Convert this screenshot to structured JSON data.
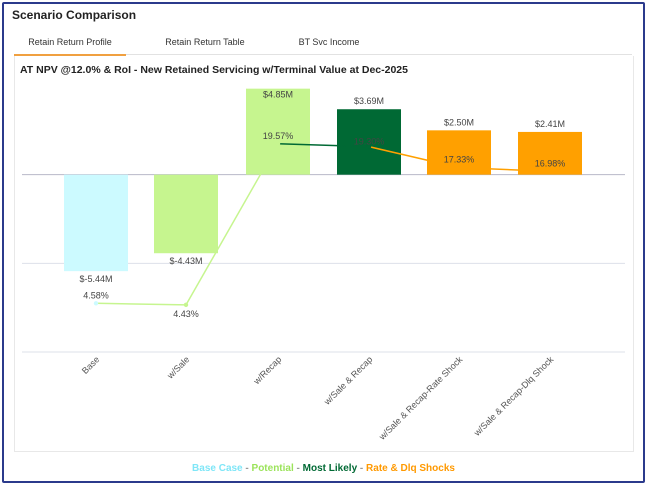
{
  "panel": {
    "title": "Scenario Comparison",
    "tabs": [
      {
        "label": "Retain Return Profile",
        "active": true
      },
      {
        "label": "Retain Return Table",
        "active": false
      },
      {
        "label": "BT Svc Income",
        "active": false
      }
    ]
  },
  "chart_data": {
    "type": "bar",
    "title": "AT NPV @12.0% & RoI - New Retained Servicing w/Terminal Value at Dec-2025",
    "categories": [
      "Base",
      "w/Sale",
      "w/Recap",
      "w/Sale & Recap",
      "w/Sale & Recap-Rate Shock",
      "w/Sale & Recap-Dlq Shock"
    ],
    "series": [
      {
        "name": "AT NPV ($M)",
        "type": "bar",
        "values": [
          -5.44,
          -4.43,
          4.85,
          3.69,
          2.5,
          2.41
        ],
        "labels": [
          "$-5.44M",
          "$-4.43M",
          "$4.85M",
          "$3.69M",
          "$2.50M",
          "$2.41M"
        ],
        "colors": [
          "#ccfaff",
          "#c6f58f",
          "#c6f58f",
          "#006934",
          "#ffa000",
          "#ffa000"
        ]
      },
      {
        "name": "RoI (%)",
        "type": "line",
        "values": [
          4.58,
          4.43,
          19.57,
          19.3,
          17.33,
          16.98
        ],
        "labels": [
          "4.58%",
          "4.43%",
          "19.57%",
          "19.30%",
          "17.33%",
          "16.98%"
        ],
        "colors": [
          "#ccfaff",
          "#c6f58f",
          "#c6f58f",
          "#006934",
          "#ffa000",
          "#ffa000"
        ]
      }
    ],
    "ylim_npv": [
      -10,
      5
    ],
    "ylim_roi": [
      0,
      25
    ],
    "legend": [
      {
        "label": "Base Case",
        "color": "#7fe6f7"
      },
      {
        "label": "Potential",
        "color": "#9be35a"
      },
      {
        "label": "Most Likely",
        "color": "#006934"
      },
      {
        "label": "Rate & Dlq Shocks",
        "color": "#ff9900"
      }
    ],
    "legend_separator": "-"
  }
}
